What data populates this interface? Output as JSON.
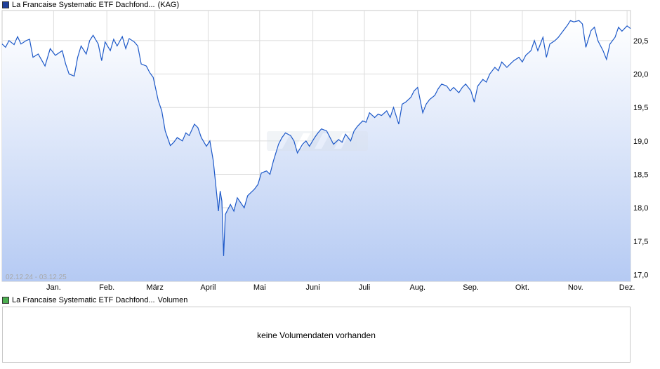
{
  "legend_price": {
    "name": "La Francaise Systematic ETF Dachfond...",
    "suffix": "(KAG)",
    "color": "#1f3f9a"
  },
  "legend_volume": {
    "name": "La Francaise Systematic ETF Dachfond...",
    "suffix": "Volumen",
    "color": "#4caf50"
  },
  "volume": {
    "message": "keine Volumendaten vorhanden"
  },
  "chart_data": {
    "type": "area",
    "date_range_label": "02.12.24 - 03.12.25",
    "x_range": [
      "2024-12-02",
      "2025-12-03"
    ],
    "x_ticks": [
      {
        "label": "Jan.",
        "date": "2025-01-01"
      },
      {
        "label": "Feb.",
        "date": "2025-02-01"
      },
      {
        "label": "März",
        "date": "2025-03-01"
      },
      {
        "label": "April",
        "date": "2025-04-01"
      },
      {
        "label": "Mai",
        "date": "2025-05-01"
      },
      {
        "label": "Juni",
        "date": "2025-06-01"
      },
      {
        "label": "Juli",
        "date": "2025-07-01"
      },
      {
        "label": "Aug.",
        "date": "2025-08-01"
      },
      {
        "label": "Sep.",
        "date": "2025-09-01"
      },
      {
        "label": "Okt.",
        "date": "2025-10-01"
      },
      {
        "label": "Nov.",
        "date": "2025-11-01"
      },
      {
        "label": "Dez.",
        "date": "2025-12-01"
      }
    ],
    "y_ticks": [
      "17,0",
      "17,5",
      "18,0",
      "18,5",
      "19,0",
      "19,5",
      "20,0",
      "20,5"
    ],
    "ylim": [
      16.9,
      20.95
    ],
    "grid": true,
    "line_color": "#1c58c8",
    "fill_top_color": "#ffffff",
    "fill_bottom_color": "#b5caf3",
    "series": [
      {
        "values": [
          [
            "2024-12-02",
            20.45
          ],
          [
            "2024-12-04",
            20.4
          ],
          [
            "2024-12-06",
            20.5
          ],
          [
            "2024-12-09",
            20.44
          ],
          [
            "2024-12-11",
            20.56
          ],
          [
            "2024-12-13",
            20.45
          ],
          [
            "2024-12-16",
            20.5
          ],
          [
            "2024-12-18",
            20.52
          ],
          [
            "2024-12-20",
            20.25
          ],
          [
            "2024-12-23",
            20.3
          ],
          [
            "2024-12-27",
            20.12
          ],
          [
            "2024-12-30",
            20.38
          ],
          [
            "2025-01-02",
            20.28
          ],
          [
            "2025-01-06",
            20.35
          ],
          [
            "2025-01-08",
            20.15
          ],
          [
            "2025-01-10",
            20.0
          ],
          [
            "2025-01-13",
            19.97
          ],
          [
            "2025-01-15",
            20.25
          ],
          [
            "2025-01-17",
            20.42
          ],
          [
            "2025-01-20",
            20.3
          ],
          [
            "2025-01-22",
            20.5
          ],
          [
            "2025-01-24",
            20.58
          ],
          [
            "2025-01-27",
            20.45
          ],
          [
            "2025-01-29",
            20.2
          ],
          [
            "2025-01-31",
            20.48
          ],
          [
            "2025-02-03",
            20.35
          ],
          [
            "2025-02-05",
            20.52
          ],
          [
            "2025-02-07",
            20.42
          ],
          [
            "2025-02-10",
            20.56
          ],
          [
            "2025-02-12",
            20.38
          ],
          [
            "2025-02-14",
            20.53
          ],
          [
            "2025-02-17",
            20.48
          ],
          [
            "2025-02-19",
            20.42
          ],
          [
            "2025-02-21",
            20.15
          ],
          [
            "2025-02-24",
            20.12
          ],
          [
            "2025-02-26",
            20.02
          ],
          [
            "2025-02-28",
            19.95
          ],
          [
            "2025-03-03",
            19.6
          ],
          [
            "2025-03-05",
            19.45
          ],
          [
            "2025-03-07",
            19.15
          ],
          [
            "2025-03-10",
            18.93
          ],
          [
            "2025-03-12",
            18.98
          ],
          [
            "2025-03-14",
            19.05
          ],
          [
            "2025-03-17",
            19.0
          ],
          [
            "2025-03-19",
            19.12
          ],
          [
            "2025-03-21",
            19.08
          ],
          [
            "2025-03-24",
            19.25
          ],
          [
            "2025-03-26",
            19.2
          ],
          [
            "2025-03-28",
            19.05
          ],
          [
            "2025-03-31",
            18.92
          ],
          [
            "2025-04-02",
            19.0
          ],
          [
            "2025-04-04",
            18.7
          ],
          [
            "2025-04-07",
            17.95
          ],
          [
            "2025-04-08",
            18.25
          ],
          [
            "2025-04-09",
            18.1
          ],
          [
            "2025-04-10",
            17.28
          ],
          [
            "2025-04-11",
            17.9
          ],
          [
            "2025-04-14",
            18.05
          ],
          [
            "2025-04-16",
            17.95
          ],
          [
            "2025-04-18",
            18.15
          ],
          [
            "2025-04-22",
            18.0
          ],
          [
            "2025-04-24",
            18.18
          ],
          [
            "2025-04-28",
            18.28
          ],
          [
            "2025-04-30",
            18.35
          ],
          [
            "2025-05-02",
            18.52
          ],
          [
            "2025-05-05",
            18.55
          ],
          [
            "2025-05-07",
            18.5
          ],
          [
            "2025-05-09",
            18.7
          ],
          [
            "2025-05-12",
            18.95
          ],
          [
            "2025-05-14",
            19.05
          ],
          [
            "2025-05-16",
            19.12
          ],
          [
            "2025-05-19",
            19.08
          ],
          [
            "2025-05-21",
            19.0
          ],
          [
            "2025-05-23",
            18.82
          ],
          [
            "2025-05-26",
            18.95
          ],
          [
            "2025-05-28",
            19.0
          ],
          [
            "2025-05-30",
            18.92
          ],
          [
            "2025-06-02",
            19.05
          ],
          [
            "2025-06-04",
            19.12
          ],
          [
            "2025-06-06",
            19.18
          ],
          [
            "2025-06-09",
            19.15
          ],
          [
            "2025-06-11",
            19.05
          ],
          [
            "2025-06-13",
            18.95
          ],
          [
            "2025-06-16",
            19.02
          ],
          [
            "2025-06-18",
            18.98
          ],
          [
            "2025-06-20",
            19.1
          ],
          [
            "2025-06-23",
            19.0
          ],
          [
            "2025-06-25",
            19.15
          ],
          [
            "2025-06-27",
            19.22
          ],
          [
            "2025-06-30",
            19.3
          ],
          [
            "2025-07-02",
            19.28
          ],
          [
            "2025-07-04",
            19.42
          ],
          [
            "2025-07-07",
            19.35
          ],
          [
            "2025-07-09",
            19.4
          ],
          [
            "2025-07-11",
            19.38
          ],
          [
            "2025-07-14",
            19.45
          ],
          [
            "2025-07-16",
            19.35
          ],
          [
            "2025-07-18",
            19.5
          ],
          [
            "2025-07-21",
            19.25
          ],
          [
            "2025-07-23",
            19.55
          ],
          [
            "2025-07-25",
            19.58
          ],
          [
            "2025-07-28",
            19.65
          ],
          [
            "2025-07-30",
            19.75
          ],
          [
            "2025-08-01",
            19.8
          ],
          [
            "2025-08-04",
            19.42
          ],
          [
            "2025-08-06",
            19.55
          ],
          [
            "2025-08-08",
            19.62
          ],
          [
            "2025-08-11",
            19.68
          ],
          [
            "2025-08-13",
            19.78
          ],
          [
            "2025-08-15",
            19.85
          ],
          [
            "2025-08-18",
            19.82
          ],
          [
            "2025-08-20",
            19.75
          ],
          [
            "2025-08-22",
            19.8
          ],
          [
            "2025-08-25",
            19.72
          ],
          [
            "2025-08-27",
            19.8
          ],
          [
            "2025-08-29",
            19.85
          ],
          [
            "2025-09-01",
            19.75
          ],
          [
            "2025-09-03",
            19.58
          ],
          [
            "2025-09-05",
            19.82
          ],
          [
            "2025-09-08",
            19.92
          ],
          [
            "2025-09-10",
            19.88
          ],
          [
            "2025-09-12",
            20.0
          ],
          [
            "2025-09-15",
            20.1
          ],
          [
            "2025-09-17",
            20.05
          ],
          [
            "2025-09-19",
            20.18
          ],
          [
            "2025-09-22",
            20.1
          ],
          [
            "2025-09-24",
            20.15
          ],
          [
            "2025-09-26",
            20.2
          ],
          [
            "2025-09-29",
            20.25
          ],
          [
            "2025-10-01",
            20.18
          ],
          [
            "2025-10-03",
            20.28
          ],
          [
            "2025-10-06",
            20.35
          ],
          [
            "2025-10-08",
            20.5
          ],
          [
            "2025-10-10",
            20.35
          ],
          [
            "2025-10-13",
            20.55
          ],
          [
            "2025-10-15",
            20.25
          ],
          [
            "2025-10-17",
            20.45
          ],
          [
            "2025-10-20",
            20.5
          ],
          [
            "2025-10-22",
            20.55
          ],
          [
            "2025-10-24",
            20.62
          ],
          [
            "2025-10-27",
            20.72
          ],
          [
            "2025-10-29",
            20.8
          ],
          [
            "2025-10-31",
            20.78
          ],
          [
            "2025-11-03",
            20.8
          ],
          [
            "2025-11-05",
            20.75
          ],
          [
            "2025-11-07",
            20.4
          ],
          [
            "2025-11-10",
            20.65
          ],
          [
            "2025-11-12",
            20.7
          ],
          [
            "2025-11-14",
            20.5
          ],
          [
            "2025-11-17",
            20.35
          ],
          [
            "2025-11-19",
            20.22
          ],
          [
            "2025-11-21",
            20.45
          ],
          [
            "2025-11-24",
            20.55
          ],
          [
            "2025-11-26",
            20.7
          ],
          [
            "2025-11-28",
            20.64
          ],
          [
            "2025-12-01",
            20.72
          ],
          [
            "2025-12-03",
            20.68
          ]
        ]
      }
    ]
  }
}
